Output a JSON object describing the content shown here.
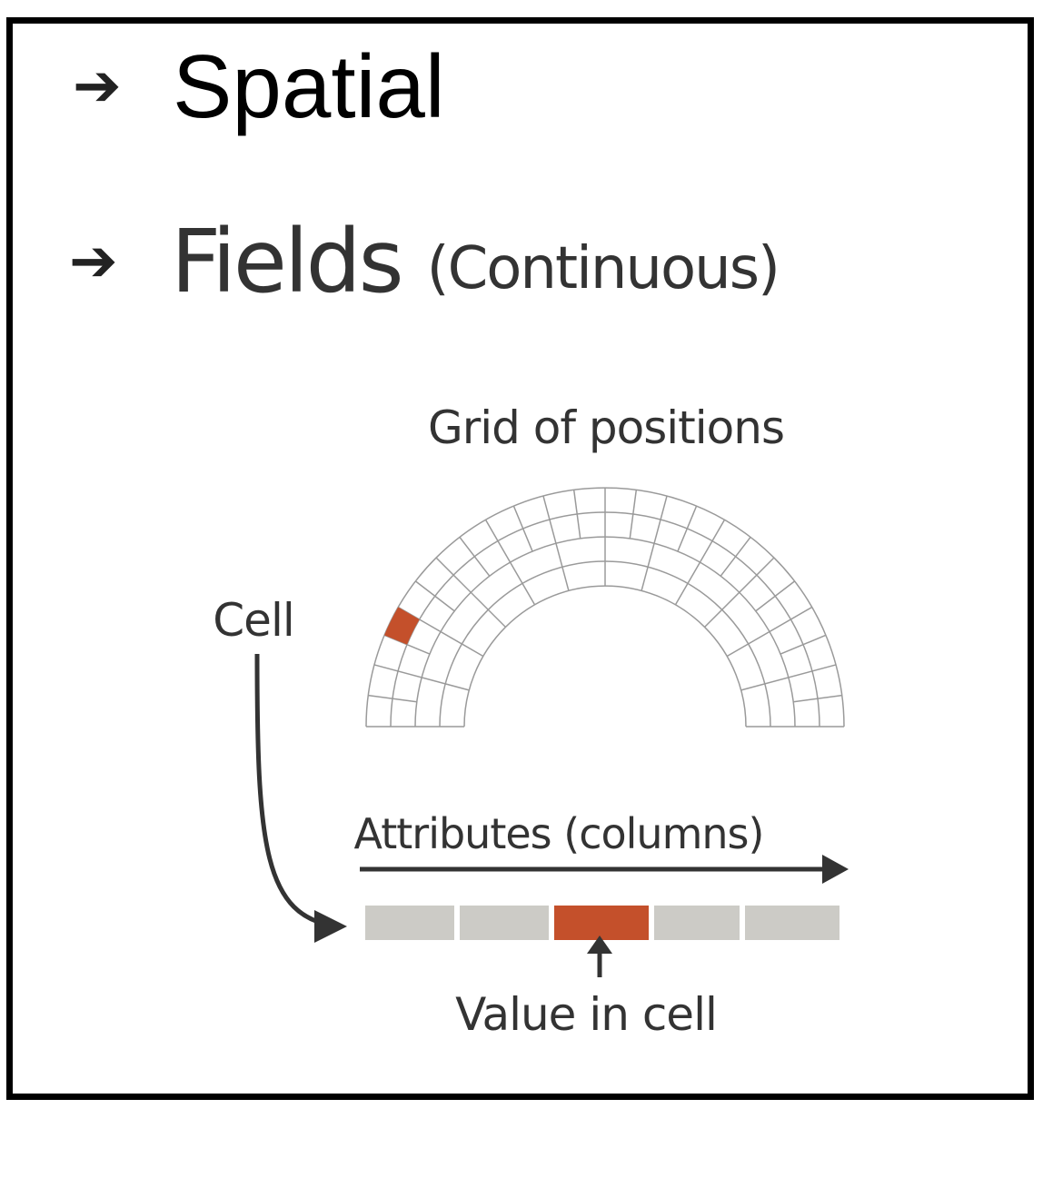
{
  "bullets": [
    {
      "arrow": "➔",
      "label": "Spatial"
    },
    {
      "arrow": "➔",
      "label": "Fields",
      "sublabel": "(Continuous)"
    }
  ],
  "diagram": {
    "grid_title": "Grid of positions",
    "cell_label": "Cell",
    "attributes_label": "Attributes (columns)",
    "value_label": "Value in cell",
    "attribute_count": 5,
    "highlighted_attribute": 3,
    "colors": {
      "highlight": "#c4502b",
      "attribute_fill": "#cccbc6",
      "grid_line": "#9a9a9a",
      "arrow": "#333333"
    }
  }
}
